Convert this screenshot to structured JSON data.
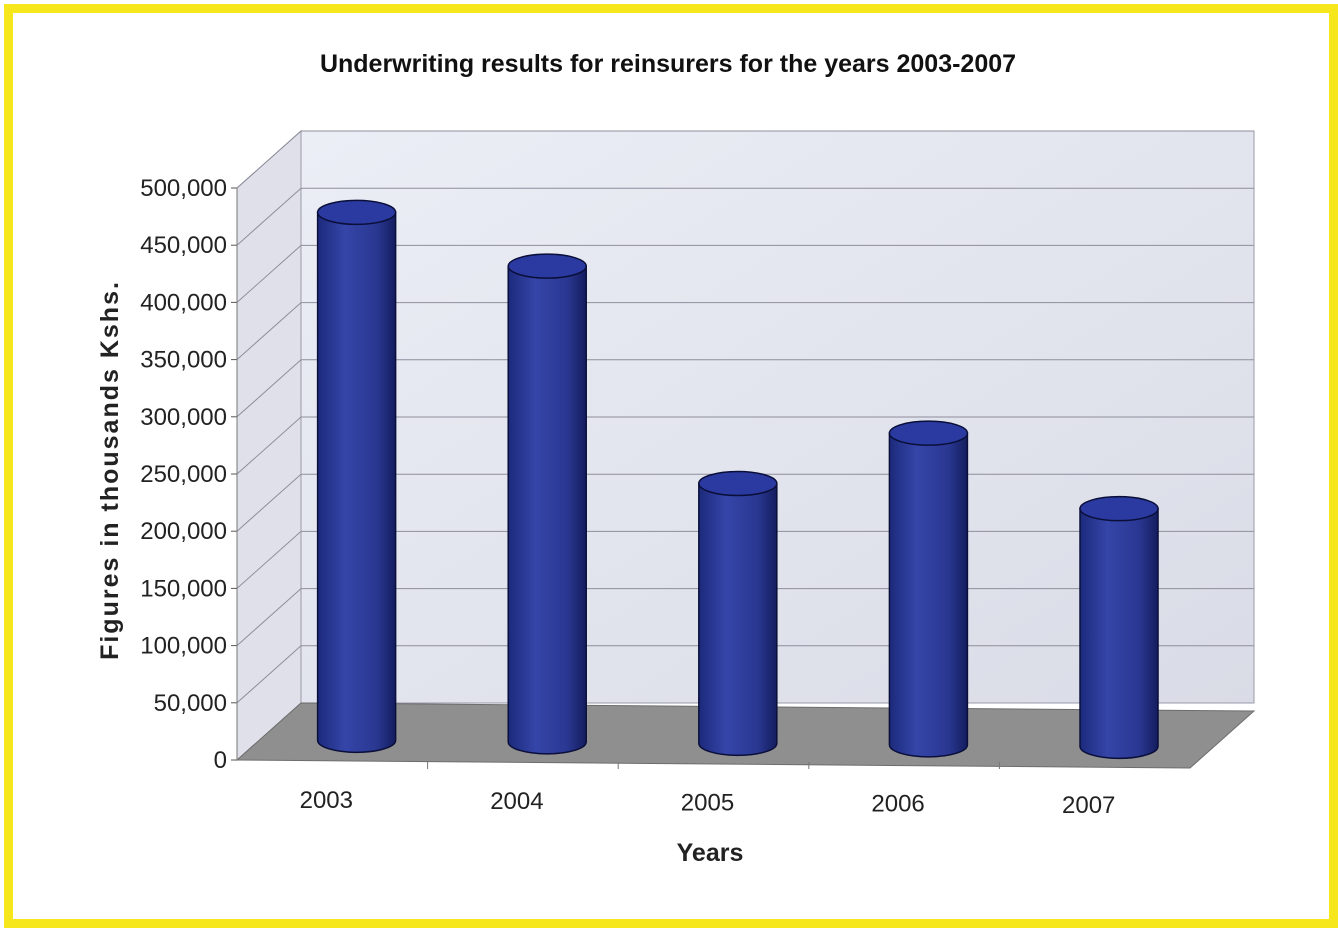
{
  "chart_data": {
    "type": "bar",
    "title": "Underwriting results for reinsurers for the years 2003-2007",
    "xlabel": "Years",
    "ylabel": "Figures in thousands Kshs.",
    "categories": [
      "2003",
      "2004",
      "2005",
      "2006",
      "2007"
    ],
    "values": [
      465000,
      418000,
      228000,
      272000,
      206000
    ],
    "ylim": [
      0,
      500000
    ],
    "yticks": [
      "0",
      "50,000",
      "100,000",
      "150,000",
      "200,000",
      "250,000",
      "300,000",
      "350,000",
      "400,000",
      "450,000",
      "500,000"
    ],
    "grid": true,
    "legend": "none",
    "style": "3d-cylinder",
    "colors": {
      "bar": "#2a3a9a",
      "bar_dark": "#151f66",
      "bar_light": "#4050b8",
      "wall": "#e4e5ef",
      "floor": "#8f8f8f",
      "frame": "#f6e61c"
    }
  }
}
